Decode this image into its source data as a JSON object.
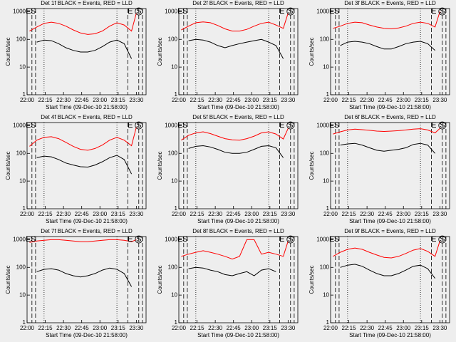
{
  "chart_data": [
    {
      "type": "line",
      "title": "Det 1f BLACK = Events, RED = LLD",
      "xlabel": "Start Time (09-Dec-10 21:58:00)",
      "ylabel": "Counts/sec",
      "x": [
        "22:02",
        "22:08",
        "22:14",
        "22:20",
        "22:26",
        "22:32",
        "22:38",
        "22:44",
        "22:50",
        "22:56",
        "23:02",
        "23:08",
        "23:14",
        "23:20",
        "23:26",
        "23:30"
      ],
      "series": [
        {
          "name": "LLD",
          "color": "#ff0000",
          "values": [
            200,
            280,
            380,
            420,
            380,
            300,
            220,
            170,
            150,
            160,
            200,
            300,
            400,
            330,
            200,
            900
          ]
        },
        {
          "name": "Events",
          "color": "#000000",
          "values": [
            null,
            80,
            95,
            90,
            70,
            50,
            40,
            35,
            35,
            40,
            55,
            80,
            95,
            70,
            20,
            null
          ]
        }
      ],
      "xlim": [
        "22:00",
        "23:38"
      ],
      "xticks": [
        "22:00",
        "22:15",
        "22:30",
        "22:45",
        "23:00",
        "23:15",
        "23:30"
      ],
      "ylim": [
        1,
        1300
      ],
      "yticks": [
        1,
        10,
        100,
        1000
      ],
      "log_y": true,
      "dashed_lines": [
        "22:04",
        "22:07",
        "23:23",
        "23:32",
        "23:35"
      ],
      "dotted_lines": [
        "22:14",
        "23:14"
      ],
      "annotations": [
        {
          "text": "E",
          "x": "22:01"
        },
        {
          "text": "S",
          "x": "22:05"
        },
        {
          "text": "E",
          "x": "23:25"
        },
        {
          "text": "S",
          "x": "23:32"
        }
      ]
    },
    {
      "type": "line",
      "title": "Det 2f BLACK = Events, RED = LLD",
      "xlabel": "Start Time (09-Dec-10 21:58:00)",
      "ylabel": "Counts/sec",
      "x": [
        "22:02",
        "22:08",
        "22:14",
        "22:20",
        "22:26",
        "22:32",
        "22:38",
        "22:44",
        "22:50",
        "22:56",
        "23:02",
        "23:08",
        "23:14",
        "23:20",
        "23:26",
        "23:30"
      ],
      "series": [
        {
          "name": "LLD",
          "color": "#ff0000",
          "values": [
            220,
            300,
            400,
            430,
            400,
            320,
            240,
            200,
            200,
            230,
            300,
            380,
            420,
            330,
            250,
            900
          ]
        },
        {
          "name": "Events",
          "color": "#000000",
          "values": [
            null,
            90,
            100,
            95,
            80,
            60,
            50,
            60,
            70,
            80,
            90,
            100,
            80,
            60,
            20,
            null
          ]
        }
      ],
      "xlim": [
        "22:00",
        "23:38"
      ],
      "xticks": [
        "22:00",
        "22:15",
        "22:30",
        "22:45",
        "23:00",
        "23:15",
        "23:30"
      ],
      "ylim": [
        1,
        1300
      ],
      "yticks": [
        1,
        10,
        100,
        1000
      ],
      "log_y": true,
      "dashed_lines": [
        "22:04",
        "22:07",
        "23:23",
        "23:32",
        "23:35"
      ],
      "dotted_lines": [
        "22:14",
        "23:14"
      ],
      "annotations": [
        {
          "text": "E",
          "x": "22:01"
        },
        {
          "text": "S",
          "x": "22:05"
        },
        {
          "text": "E",
          "x": "23:25"
        },
        {
          "text": "S",
          "x": "23:32"
        }
      ]
    },
    {
      "type": "line",
      "title": "Det 3f BLACK = Events, RED = LLD",
      "xlabel": "Start Time (09-Dec-10 21:58:00)",
      "ylabel": "Counts/sec",
      "x": [
        "22:02",
        "22:08",
        "22:14",
        "22:20",
        "22:26",
        "22:32",
        "22:38",
        "22:44",
        "22:50",
        "22:56",
        "23:02",
        "23:08",
        "23:14",
        "23:20",
        "23:26",
        "23:30"
      ],
      "series": [
        {
          "name": "LLD",
          "color": "#ff0000",
          "values": [
            250,
            300,
            380,
            420,
            400,
            330,
            280,
            250,
            240,
            260,
            300,
            380,
            420,
            380,
            280,
            1000
          ]
        },
        {
          "name": "Events",
          "color": "#000000",
          "values": [
            null,
            60,
            80,
            85,
            80,
            70,
            55,
            45,
            45,
            55,
            70,
            80,
            85,
            70,
            40,
            null
          ]
        }
      ],
      "xlim": [
        "22:00",
        "23:38"
      ],
      "xticks": [
        "22:00",
        "22:15",
        "22:30",
        "22:45",
        "23:00",
        "23:15",
        "23:30"
      ],
      "ylim": [
        1,
        1300
      ],
      "yticks": [
        1,
        10,
        100,
        1000
      ],
      "log_y": true,
      "dashed_lines": [
        "22:04",
        "22:07",
        "23:23",
        "23:32",
        "23:35"
      ],
      "dotted_lines": [
        "22:14",
        "23:14"
      ],
      "annotations": [
        {
          "text": "E",
          "x": "22:01"
        },
        {
          "text": "S",
          "x": "22:05"
        },
        {
          "text": "E",
          "x": "23:25"
        },
        {
          "text": "S",
          "x": "23:32"
        }
      ]
    },
    {
      "type": "line",
      "title": "Det 4f BLACK = Events, RED = LLD",
      "xlabel": "Start Time (09-Dec-10 21:58:00)",
      "ylabel": "Counts/sec",
      "x": [
        "22:02",
        "22:08",
        "22:14",
        "22:20",
        "22:26",
        "22:32",
        "22:38",
        "22:44",
        "22:50",
        "22:56",
        "23:02",
        "23:08",
        "23:14",
        "23:20",
        "23:26",
        "23:30"
      ],
      "series": [
        {
          "name": "LLD",
          "color": "#ff0000",
          "values": [
            180,
            300,
            380,
            400,
            340,
            250,
            180,
            140,
            130,
            150,
            200,
            300,
            380,
            300,
            190,
            900
          ]
        },
        {
          "name": "Events",
          "color": "#000000",
          "values": [
            null,
            70,
            80,
            75,
            60,
            45,
            38,
            33,
            32,
            38,
            50,
            70,
            85,
            60,
            18,
            null
          ]
        }
      ],
      "xlim": [
        "22:00",
        "23:38"
      ],
      "xticks": [
        "22:00",
        "22:15",
        "22:30",
        "22:45",
        "23:00",
        "23:15",
        "23:30"
      ],
      "ylim": [
        1,
        1300
      ],
      "yticks": [
        1,
        10,
        100,
        1000
      ],
      "log_y": true,
      "dashed_lines": [
        "22:04",
        "22:07",
        "23:23",
        "23:32",
        "23:35"
      ],
      "dotted_lines": [
        "22:14",
        "23:14"
      ],
      "annotations": [
        {
          "text": "E",
          "x": "22:01"
        },
        {
          "text": "S",
          "x": "22:05"
        },
        {
          "text": "E",
          "x": "23:25"
        },
        {
          "text": "S",
          "x": "23:32"
        }
      ]
    },
    {
      "type": "line",
      "title": "Det 5f BLACK = Events, RED = LLD",
      "xlabel": "Start Time (09-Dec-10 21:58:00)",
      "ylabel": "Counts/sec",
      "x": [
        "22:02",
        "22:08",
        "22:14",
        "22:20",
        "22:26",
        "22:32",
        "22:38",
        "22:44",
        "22:50",
        "22:56",
        "23:02",
        "23:08",
        "23:14",
        "23:20",
        "23:26",
        "23:30"
      ],
      "series": [
        {
          "name": "LLD",
          "color": "#ff0000",
          "values": [
            300,
            450,
            550,
            600,
            520,
            420,
            340,
            310,
            300,
            340,
            420,
            550,
            600,
            500,
            330,
            800
          ]
        },
        {
          "name": "Events",
          "color": "#000000",
          "values": [
            null,
            150,
            180,
            190,
            170,
            140,
            110,
            100,
            100,
            110,
            140,
            180,
            190,
            160,
            70,
            null
          ]
        }
      ],
      "xlim": [
        "22:00",
        "23:38"
      ],
      "xticks": [
        "22:00",
        "22:15",
        "22:30",
        "22:45",
        "23:00",
        "23:15",
        "23:30"
      ],
      "ylim": [
        1,
        1300
      ],
      "yticks": [
        1,
        10,
        100,
        1000
      ],
      "log_y": true,
      "dashed_lines": [
        "22:04",
        "22:07",
        "23:23",
        "23:32",
        "23:35"
      ],
      "dotted_lines": [
        "22:14",
        "23:14"
      ],
      "annotations": [
        {
          "text": "E",
          "x": "22:01"
        },
        {
          "text": "S",
          "x": "22:05"
        },
        {
          "text": "E",
          "x": "23:25"
        },
        {
          "text": "S",
          "x": "23:32"
        }
      ]
    },
    {
      "type": "line",
      "title": "Det 6f BLACK = Events, RED = LLD",
      "xlabel": "Start Time (09-Dec-10 21:58:00)",
      "ylabel": "Counts/sec",
      "x": [
        "22:02",
        "22:08",
        "22:14",
        "22:20",
        "22:26",
        "22:32",
        "22:38",
        "22:44",
        "22:50",
        "22:56",
        "23:02",
        "23:08",
        "23:14",
        "23:20",
        "23:26",
        "23:30"
      ],
      "series": [
        {
          "name": "LLD",
          "color": "#ff0000",
          "values": [
            500,
            600,
            700,
            750,
            720,
            680,
            640,
            620,
            640,
            660,
            700,
            750,
            780,
            700,
            550,
            800
          ]
        },
        {
          "name": "Events",
          "color": "#000000",
          "values": [
            null,
            200,
            220,
            230,
            200,
            160,
            130,
            120,
            130,
            140,
            160,
            210,
            230,
            200,
            100,
            null
          ]
        }
      ],
      "xlim": [
        "22:00",
        "23:38"
      ],
      "xticks": [
        "22:00",
        "22:15",
        "22:30",
        "22:45",
        "23:00",
        "23:15",
        "23:30"
      ],
      "ylim": [
        1,
        1300
      ],
      "yticks": [
        1,
        10,
        100,
        1000
      ],
      "log_y": true,
      "dashed_lines": [
        "22:04",
        "22:07",
        "23:23",
        "23:32",
        "23:35"
      ],
      "dotted_lines": [
        "22:14",
        "23:14"
      ],
      "annotations": [
        {
          "text": "E",
          "x": "22:01"
        },
        {
          "text": "S",
          "x": "22:05"
        },
        {
          "text": "E",
          "x": "23:25"
        },
        {
          "text": "S",
          "x": "23:32"
        }
      ]
    },
    {
      "type": "line",
      "title": "Det 7f BLACK = Events, RED = LLD",
      "xlabel": "Start Time (09-Dec-10 21:58:00)",
      "ylabel": "Counts/sec",
      "x": [
        "22:02",
        "22:08",
        "22:14",
        "22:20",
        "22:26",
        "22:32",
        "22:38",
        "22:44",
        "22:50",
        "22:56",
        "23:02",
        "23:08",
        "23:14",
        "23:20",
        "23:26",
        "23:30"
      ],
      "series": [
        {
          "name": "LLD",
          "color": "#ff0000",
          "values": [
            800,
            900,
            950,
            1000,
            1000,
            950,
            900,
            850,
            850,
            900,
            950,
            1000,
            1000,
            950,
            850,
            1000
          ]
        },
        {
          "name": "Events",
          "color": "#000000",
          "values": [
            null,
            70,
            85,
            90,
            80,
            60,
            50,
            45,
            50,
            60,
            80,
            95,
            85,
            60,
            20,
            null
          ]
        }
      ],
      "xlim": [
        "22:00",
        "23:38"
      ],
      "xticks": [
        "22:00",
        "22:15",
        "22:30",
        "22:45",
        "23:00",
        "23:15",
        "23:30"
      ],
      "ylim": [
        1,
        1300
      ],
      "yticks": [
        1,
        10,
        100,
        1000
      ],
      "log_y": true,
      "dashed_lines": [
        "22:04",
        "22:07",
        "23:23",
        "23:32",
        "23:35"
      ],
      "dotted_lines": [
        "22:14",
        "23:14"
      ],
      "annotations": [
        {
          "text": "E",
          "x": "22:01"
        },
        {
          "text": "S",
          "x": "22:05"
        },
        {
          "text": "E",
          "x": "23:25"
        },
        {
          "text": "S",
          "x": "23:32"
        }
      ]
    },
    {
      "type": "line",
      "title": "Det 8f BLACK = Events, RED = LLD",
      "xlabel": "Start Time (09-Dec-10 21:58:00)",
      "ylabel": "Counts/sec",
      "x": [
        "22:02",
        "22:08",
        "22:14",
        "22:20",
        "22:26",
        "22:32",
        "22:38",
        "22:44",
        "22:50",
        "22:56",
        "23:02",
        "23:08",
        "23:14",
        "23:20",
        "23:26",
        "23:30"
      ],
      "series": [
        {
          "name": "LLD",
          "color": "#ff0000",
          "values": [
            250,
            300,
            350,
            400,
            350,
            300,
            250,
            200,
            250,
            1000,
            1000,
            300,
            350,
            300,
            250,
            900
          ]
        },
        {
          "name": "Events",
          "color": "#000000",
          "values": [
            null,
            90,
            100,
            95,
            80,
            70,
            55,
            50,
            60,
            70,
            50,
            80,
            90,
            70,
            null,
            null
          ]
        }
      ],
      "xlim": [
        "22:00",
        "23:38"
      ],
      "xticks": [
        "22:00",
        "22:15",
        "22:30",
        "22:45",
        "23:00",
        "23:15",
        "23:30"
      ],
      "ylim": [
        1,
        1300
      ],
      "yticks": [
        1,
        10,
        100,
        1000
      ],
      "log_y": true,
      "dashed_lines": [
        "22:04",
        "22:07",
        "23:23",
        "23:32",
        "23:35"
      ],
      "dotted_lines": [
        "22:14",
        "23:14"
      ],
      "annotations": [
        {
          "text": "E",
          "x": "22:01"
        },
        {
          "text": "S",
          "x": "22:05"
        },
        {
          "text": "E",
          "x": "23:25"
        },
        {
          "text": "S",
          "x": "23:32"
        }
      ]
    },
    {
      "type": "line",
      "title": "Det 9f BLACK = Events, RED = LLD",
      "xlabel": "Start Time (09-Dec-10 21:58:00)",
      "ylabel": "Counts/sec",
      "x": [
        "22:02",
        "22:08",
        "22:14",
        "22:20",
        "22:26",
        "22:32",
        "22:38",
        "22:44",
        "22:50",
        "22:56",
        "23:02",
        "23:08",
        "23:14",
        "23:20",
        "23:26",
        "23:30"
      ],
      "series": [
        {
          "name": "LLD",
          "color": "#ff0000",
          "values": [
            250,
            350,
            450,
            500,
            450,
            350,
            280,
            230,
            220,
            250,
            320,
            420,
            480,
            380,
            250,
            900
          ]
        },
        {
          "name": "Events",
          "color": "#000000",
          "values": [
            null,
            100,
            120,
            130,
            110,
            80,
            60,
            50,
            50,
            60,
            80,
            110,
            120,
            90,
            40,
            null
          ]
        }
      ],
      "xlim": [
        "22:00",
        "23:38"
      ],
      "xticks": [
        "22:00",
        "22:15",
        "22:30",
        "22:45",
        "23:00",
        "23:15",
        "23:30"
      ],
      "ylim": [
        1,
        1300
      ],
      "yticks": [
        1,
        10,
        100,
        1000
      ],
      "log_y": true,
      "dashed_lines": [
        "22:04",
        "22:07",
        "23:23",
        "23:32",
        "23:35"
      ],
      "dotted_lines": [
        "22:14",
        "23:14"
      ],
      "annotations": [
        {
          "text": "E",
          "x": "22:01"
        },
        {
          "text": "S",
          "x": "22:05"
        },
        {
          "text": "E",
          "x": "23:25"
        },
        {
          "text": "S",
          "x": "23:32"
        }
      ]
    }
  ]
}
